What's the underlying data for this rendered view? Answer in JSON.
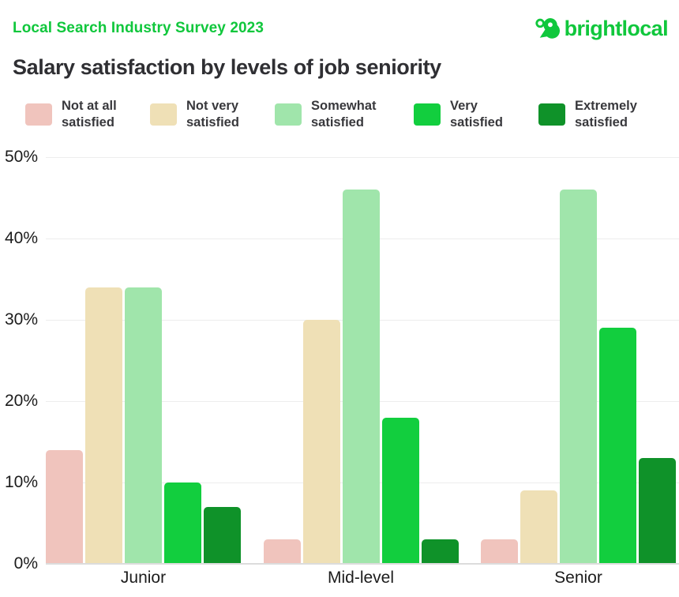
{
  "header": {
    "survey_label": "Local Search Industry Survey 2023",
    "logo_text": "brightlocal"
  },
  "chart_data": {
    "type": "bar",
    "title": "Salary satisfaction by levels of job seniority",
    "categories": [
      "Junior",
      "Mid-level",
      "Senior"
    ],
    "series": [
      {
        "name": "Not at all satisfied",
        "color": "#f0c4bd",
        "values": [
          14,
          3,
          3
        ]
      },
      {
        "name": "Not very satisfied",
        "color": "#efe0b6",
        "values": [
          34,
          30,
          9
        ]
      },
      {
        "name": "Somewhat satisfied",
        "color": "#a0e5ab",
        "values": [
          34,
          46,
          46
        ]
      },
      {
        "name": "Very satisfied",
        "color": "#12ce3e",
        "values": [
          10,
          18,
          29
        ]
      },
      {
        "name": "Extremely satisfied",
        "color": "#0f9229",
        "values": [
          7,
          3,
          13
        ]
      }
    ],
    "xlabel": "",
    "ylabel": "",
    "ylim": [
      0,
      50
    ],
    "y_ticks": [
      "50%",
      "40%",
      "30%",
      "20%",
      "10%",
      "0%"
    ],
    "grid": true,
    "legend_position": "top"
  },
  "colors": {
    "brand_green": "#10c73c",
    "title_text": "#2f2f33",
    "axis_text": "#1c1c1c",
    "gridline": "#ededed",
    "baseline": "#dcdcdc",
    "background": "#ffffff"
  }
}
